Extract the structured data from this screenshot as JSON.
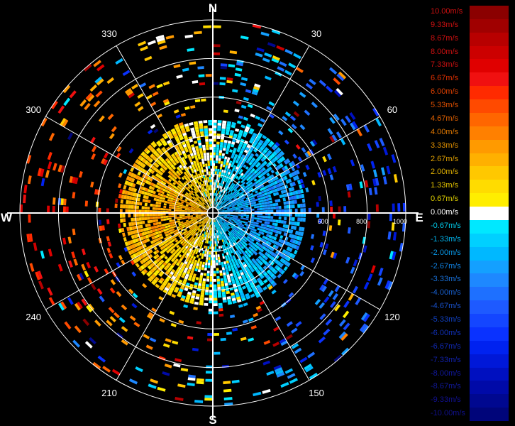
{
  "chart_data": {
    "type": "polar-velocity-ppi",
    "compass": {
      "north": "N",
      "south": "S",
      "east": "E",
      "west": "W"
    },
    "azimuth_labels": [
      "30",
      "60",
      "120",
      "150",
      "210",
      "240",
      "300",
      "330"
    ],
    "azimuth_values": [
      30,
      60,
      120,
      150,
      210,
      240,
      300,
      330
    ],
    "range_labels": [
      "600",
      "800",
      "1000"
    ],
    "range_values": [
      600,
      800,
      1000
    ],
    "range_max": 1000,
    "range_rings": [
      200,
      400,
      600,
      800,
      1000
    ],
    "colorscale": {
      "min": -10.0,
      "max": 10.0,
      "unit": "m/s",
      "labels": [
        "10.00m/s",
        "9.33m/s",
        "8.67m/s",
        "8.00m/s",
        "7.33m/s",
        "6.67m/s",
        "6.00m/s",
        "5.33m/s",
        "4.67m/s",
        "4.00m/s",
        "3.33m/s",
        "2.67m/s",
        "2.00m/s",
        "1.33m/s",
        "0.67m/s",
        "0.00m/s",
        "-0.67m/s",
        "-1.33m/s",
        "-2.00m/s",
        "-2.67m/s",
        "-3.33m/s",
        "-4.00m/s",
        "-4.67m/s",
        "-5.33m/s",
        "-6.00m/s",
        "-6.67m/s",
        "-7.33m/s",
        "-8.00m/s",
        "-8.67m/s",
        "-9.33m/s",
        "-10.00m/s"
      ],
      "colors": [
        "#8b0000",
        "#a00000",
        "#b80000",
        "#cc0000",
        "#e00000",
        "#f01010",
        "#ff2a00",
        "#ff4a00",
        "#ff6600",
        "#ff8000",
        "#ff9a00",
        "#ffb000",
        "#ffc800",
        "#ffdc00",
        "#ffee00",
        "#ffffff",
        "#00e8ff",
        "#00d0ff",
        "#00b8ff",
        "#14a0ff",
        "#1e88ff",
        "#1e70ff",
        "#1e5aff",
        "#1446ff",
        "#0a32ff",
        "#0022f0",
        "#0018d8",
        "#0010c0",
        "#000aa8",
        "#000890",
        "#00057a"
      ],
      "label_colors": [
        "#cc1010",
        "#cc1010",
        "#cc1010",
        "#cc1010",
        "#cc1010",
        "#e03000",
        "#e04000",
        "#e05000",
        "#e06000",
        "#e07800",
        "#e09000",
        "#e0a000",
        "#e0b000",
        "#e0c000",
        "#e0d000",
        "#ffffff",
        "#00c8e8",
        "#00b0e8",
        "#0898e8",
        "#1080e0",
        "#1870d8",
        "#1860d0",
        "#1850c8",
        "#1040c0",
        "#1030b8",
        "#1028b0",
        "#1020a8",
        "#1018a0",
        "#101898",
        "#101090",
        "#101088"
      ]
    },
    "gates": {
      "approach_positive_sector": "north-west / west / south-west",
      "recede_negative_sector": "east / south-east"
    }
  }
}
